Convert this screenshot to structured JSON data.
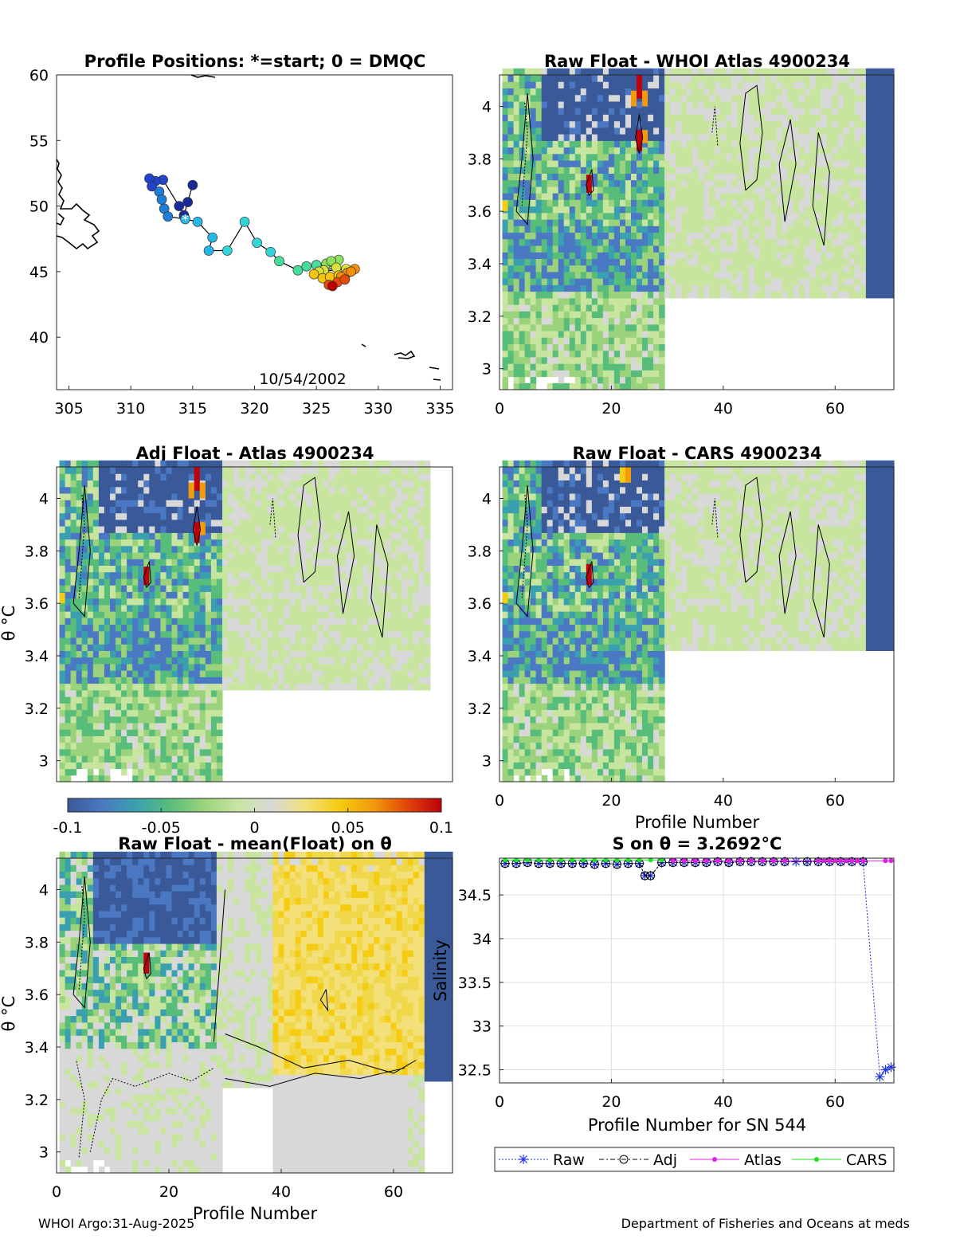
{
  "figure": {
    "footer_left": "WHOI Argo:31-Aug-2025",
    "footer_right": "Department of Fisheries and Oceans at meds"
  },
  "colors": {
    "colormap": [
      "#3a5998",
      "#4a78c2",
      "#3aa0b0",
      "#58bd7b",
      "#9ad37c",
      "#c8e5a0",
      "#d8d8d8",
      "#f3e07a",
      "#f5cc12",
      "#f29a0a",
      "#e0440a",
      "#c0000b"
    ],
    "raw_series": "#2233dd",
    "adj_series": "#000000",
    "atlas_series": "#e020e0",
    "cars_series": "#20e020"
  },
  "chart_data": [
    {
      "id": "positions",
      "type": "scatter",
      "title": "Profile Positions: *=start; 0 = DMQC",
      "xlim": [
        304,
        336
      ],
      "ylim": [
        36,
        60
      ],
      "xticks": [
        305,
        310,
        315,
        320,
        325,
        330,
        335
      ],
      "yticks": [
        40,
        45,
        50,
        55,
        60
      ],
      "date_label": "10/54/2002",
      "track": [
        [
          315.0,
          51.6
        ],
        [
          314.6,
          50.3
        ],
        [
          314.3,
          49.3
        ],
        [
          313.9,
          50.0
        ],
        [
          312.6,
          52.0
        ],
        [
          312.0,
          51.9
        ],
        [
          311.5,
          52.1
        ],
        [
          311.7,
          51.5
        ],
        [
          312.3,
          51.1
        ],
        [
          312.5,
          50.5
        ],
        [
          312.7,
          49.8
        ],
        [
          313.0,
          49.2
        ],
        [
          314.4,
          49.0
        ],
        [
          315.4,
          48.8
        ],
        [
          316.6,
          47.6
        ],
        [
          316.3,
          46.6
        ],
        [
          317.8,
          46.6
        ],
        [
          319.2,
          48.8
        ],
        [
          320.2,
          47.2
        ],
        [
          321.3,
          46.5
        ],
        [
          322.0,
          45.8
        ],
        [
          323.5,
          45.1
        ],
        [
          324.2,
          45.4
        ],
        [
          325.0,
          45.5
        ],
        [
          325.8,
          45.6
        ],
        [
          326.3,
          45.7
        ],
        [
          326.8,
          45.9
        ],
        [
          326.2,
          45.8
        ],
        [
          325.6,
          45.1
        ],
        [
          326.6,
          45.3
        ],
        [
          327.4,
          45.2
        ],
        [
          325.2,
          45.0
        ],
        [
          324.8,
          44.8
        ],
        [
          325.5,
          44.5
        ],
        [
          326.1,
          44.6
        ],
        [
          326.8,
          44.7
        ],
        [
          327.5,
          44.9
        ],
        [
          328.1,
          45.2
        ],
        [
          327.8,
          45.0
        ],
        [
          327.0,
          44.6
        ],
        [
          326.7,
          44.2
        ],
        [
          327.3,
          44.4
        ],
        [
          326.0,
          44.0
        ],
        [
          326.3,
          43.9
        ]
      ],
      "start_marker": [
        314.4,
        49.0
      ]
    },
    {
      "id": "whoi",
      "type": "heatmap",
      "title": "Raw Float - WHOI Atlas  4900234",
      "xlim": [
        0,
        70.5
      ],
      "ylim": [
        2.92,
        4.12
      ],
      "xticks": [
        0,
        20,
        40,
        60
      ],
      "yticks": [
        3,
        3.2,
        3.4,
        3.6,
        3.8,
        4
      ],
      "xlabel": "",
      "ylabel": ""
    },
    {
      "id": "adj",
      "type": "heatmap",
      "title": "Adj Float - Atlas  4900234",
      "xlim": [
        0,
        70.5
      ],
      "ylim": [
        2.92,
        4.12
      ],
      "xticks": [],
      "yticks": [
        3,
        3.2,
        3.4,
        3.6,
        3.8,
        4
      ],
      "xlabel": "",
      "ylabel": "θ °C"
    },
    {
      "id": "cars",
      "type": "heatmap",
      "title": "Raw Float - CARS  4900234",
      "xlim": [
        0,
        70.5
      ],
      "ylim": [
        2.92,
        4.12
      ],
      "xticks": [
        0,
        20,
        40,
        60
      ],
      "yticks": [
        3,
        3.2,
        3.4,
        3.6,
        3.8,
        4
      ],
      "xlabel": "Profile Number",
      "ylabel": ""
    },
    {
      "id": "mean",
      "type": "heatmap",
      "title": "Raw Float - mean(Float) on θ",
      "xlim": [
        0,
        70.5
      ],
      "ylim": [
        2.92,
        4.12
      ],
      "xticks": [
        0,
        20,
        40,
        60
      ],
      "yticks": [
        3,
        3.2,
        3.4,
        3.6,
        3.8,
        4
      ],
      "xlabel": "Profile Number",
      "ylabel": "θ °C"
    },
    {
      "id": "colorbar",
      "type": "colorbar",
      "range": [
        -0.1,
        0.1
      ],
      "tick_labels": [
        "-0.1",
        "-0.05",
        "0",
        "0.05",
        "0.1"
      ]
    },
    {
      "id": "salinity",
      "type": "line",
      "title": "S on θ = 3.2692°C",
      "xlabel": "Profile Number for SN 544",
      "ylabel": "Salinity",
      "xlim": [
        0,
        70.5
      ],
      "ylim": [
        32.35,
        34.92
      ],
      "xticks": [
        0,
        20,
        40,
        60
      ],
      "yticks": [
        32.5,
        33,
        33.5,
        34,
        34.5
      ],
      "legend": [
        "Raw",
        "Adj",
        "Atlas",
        "CARS"
      ],
      "series": [
        {
          "name": "Raw",
          "x": [
            1,
            3,
            5,
            7,
            9,
            11,
            13,
            15,
            17,
            19,
            21,
            23,
            25,
            26,
            27,
            29,
            31,
            33,
            35,
            37,
            39,
            41,
            43,
            45,
            47,
            49,
            51,
            53,
            55,
            57,
            59,
            61,
            63,
            65,
            68,
            69,
            70
          ],
          "y": [
            34.86,
            34.86,
            34.87,
            34.86,
            34.86,
            34.86,
            34.86,
            34.86,
            34.85,
            34.86,
            34.85,
            34.86,
            34.86,
            34.72,
            34.72,
            34.87,
            34.87,
            34.87,
            34.87,
            34.87,
            34.88,
            34.87,
            34.88,
            34.88,
            34.88,
            34.88,
            34.88,
            34.88,
            34.88,
            34.88,
            34.88,
            34.88,
            34.88,
            34.88,
            32.42,
            32.5,
            32.53
          ]
        },
        {
          "name": "Adj",
          "x": [
            1,
            3,
            5,
            7,
            9,
            11,
            13,
            15,
            17,
            19,
            21,
            23,
            25,
            26,
            27,
            29,
            31,
            33,
            35,
            37,
            39,
            41,
            43,
            45,
            47,
            49,
            51,
            55,
            57,
            59,
            61,
            63,
            65
          ],
          "y": [
            34.86,
            34.86,
            34.87,
            34.86,
            34.86,
            34.86,
            34.86,
            34.86,
            34.85,
            34.86,
            34.85,
            34.86,
            34.86,
            34.72,
            34.72,
            34.87,
            34.87,
            34.87,
            34.87,
            34.87,
            34.88,
            34.87,
            34.88,
            34.88,
            34.88,
            34.88,
            34.88,
            34.88,
            34.88,
            34.88,
            34.88,
            34.88,
            34.88
          ]
        },
        {
          "name": "Atlas",
          "x": [
            31,
            33,
            35,
            37,
            39,
            41,
            43,
            45,
            47,
            49,
            51,
            57,
            58,
            59,
            60,
            61,
            62,
            63,
            64,
            65,
            69,
            70
          ],
          "y": [
            34.89,
            34.89,
            34.89,
            34.89,
            34.89,
            34.89,
            34.89,
            34.89,
            34.89,
            34.89,
            34.89,
            34.89,
            34.89,
            34.89,
            34.89,
            34.89,
            34.89,
            34.89,
            34.89,
            34.89,
            34.89,
            34.89
          ]
        },
        {
          "name": "CARS",
          "x": [
            1,
            3,
            5,
            7,
            9,
            11,
            13,
            15,
            17,
            19,
            21,
            23,
            25,
            27,
            29
          ],
          "y": [
            34.9,
            34.9,
            34.9,
            34.9,
            34.9,
            34.9,
            34.9,
            34.9,
            34.9,
            34.9,
            34.9,
            34.9,
            34.9,
            34.9,
            34.9
          ]
        }
      ]
    }
  ]
}
